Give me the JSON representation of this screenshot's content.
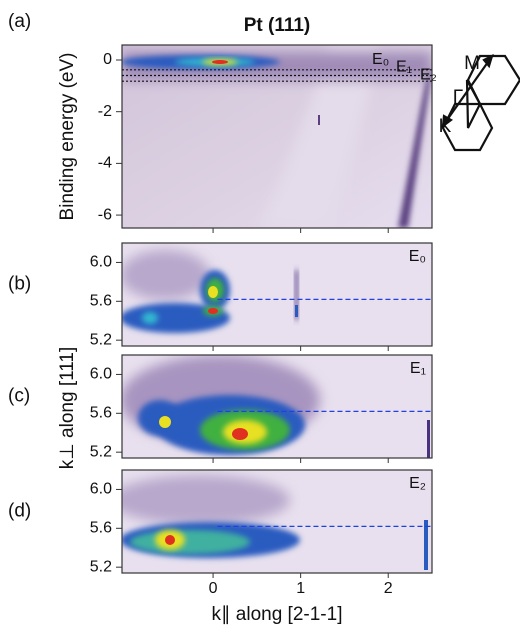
{
  "chart_data": [
    {
      "type": "heatmap",
      "panel_label": "(a)",
      "title": "Pt (111)",
      "ylabel": "Binding energy (eV)",
      "xlim": [
        -1.04,
        2.5
      ],
      "ylim": [
        -6.5,
        0.58
      ],
      "yticks": [
        0,
        -2,
        -4,
        -6
      ],
      "cuts": [
        -0.38,
        -0.6,
        -0.82
      ],
      "cut_labels": [
        "E₀",
        "E₁",
        "E₂"
      ],
      "cut_color": "#111111"
    },
    {
      "type": "heatmap",
      "panel_label": "(b)",
      "annotation": "E₀",
      "xlim": [
        -1.04,
        2.5
      ],
      "ylim": [
        5.14,
        6.2
      ],
      "yticks": [
        5.2,
        5.6,
        {
          "value": 6,
          "label": "6.0"
        }
      ],
      "cuts": [
        5.62
      ],
      "cut_color": "#2040e0"
    },
    {
      "type": "heatmap",
      "panel_label": "(c)",
      "annotation": "E₁",
      "ylabel": "k⊥ along [111]",
      "xlim": [
        -1.04,
        2.5
      ],
      "ylim": [
        5.14,
        6.2
      ],
      "yticks": [
        5.2,
        5.6,
        {
          "value": 6,
          "label": "6.0"
        }
      ],
      "cuts": [
        5.62
      ],
      "cut_color": "#2040e0"
    },
    {
      "type": "heatmap",
      "panel_label": "(d)",
      "annotation": "E₂",
      "xlabel": "k∥ along [2-1-1]",
      "xlim": [
        -1.04,
        2.5
      ],
      "ylim": [
        5.14,
        6.2
      ],
      "yticks": [
        5.2,
        5.6,
        {
          "value": 6,
          "label": "6.0"
        }
      ],
      "xticks": [
        0,
        1,
        2
      ],
      "cuts": [
        5.62
      ],
      "cut_color": "#2040e0"
    }
  ],
  "inset": {
    "labels": [
      "M",
      "Γ",
      "K"
    ]
  }
}
